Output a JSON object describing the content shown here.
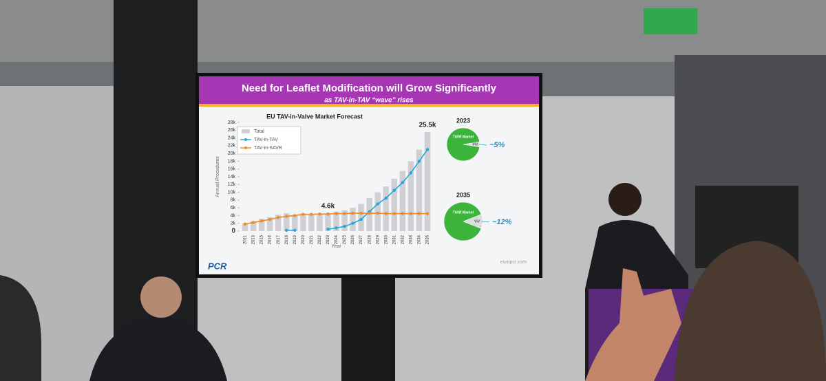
{
  "slide": {
    "title": "Need for Leaflet Modification will Grow Significantly",
    "subtitle": "as TAV-in-TAV “wave” rises",
    "logo": "PCR",
    "footer": "europcr.com"
  },
  "chart_data": [
    {
      "type": "bar-line",
      "title": "EU TAV-in-Valve Market Forecast",
      "y_label": "Annual Procedures",
      "x_label": "Year",
      "categories": [
        "2011",
        "2013",
        "2015",
        "2016",
        "2017",
        "2018",
        "2019",
        "2020",
        "2021",
        "2022",
        "2023",
        "2024",
        "2025",
        "2026",
        "2027",
        "2028",
        "2029",
        "2030",
        "2031",
        "2032",
        "2033",
        "2034",
        "2035"
      ],
      "series": [
        {
          "name": "Total",
          "kind": "bar",
          "color": "#cfcfd4",
          "values": [
            2000,
            2600,
            3200,
            3600,
            4200,
            4600,
            4200,
            4500,
            4400,
            4500,
            4600,
            5000,
            5400,
            6000,
            7000,
            8500,
            10000,
            11500,
            13500,
            15500,
            18000,
            21000,
            25500
          ]
        },
        {
          "name": "TAV-in-TAV",
          "kind": "line",
          "color": "#25a6d9",
          "values": [
            null,
            null,
            null,
            null,
            null,
            200,
            200,
            null,
            null,
            null,
            500,
            800,
            1200,
            2000,
            3000,
            5000,
            7000,
            8500,
            10500,
            12500,
            15000,
            18000,
            21000
          ]
        },
        {
          "name": "TAV-in-SAVR",
          "kind": "line",
          "color": "#f0892a",
          "values": [
            1800,
            2200,
            2600,
            3000,
            3500,
            3800,
            4000,
            4300,
            4300,
            4400,
            4400,
            4500,
            4500,
            4600,
            4600,
            4600,
            4600,
            4500,
            4500,
            4500,
            4500,
            4500,
            4500
          ]
        }
      ],
      "ylim": [
        0,
        28000
      ],
      "yticks": [
        0,
        {
          "value": 2000,
          "label": "2k"
        },
        {
          "value": 4000,
          "label": "4k"
        },
        {
          "value": 6000,
          "label": "6k"
        },
        {
          "value": 8000,
          "label": "8k"
        },
        {
          "value": 10000,
          "label": "10k"
        },
        {
          "value": 12000,
          "label": "12k"
        },
        {
          "value": 14000,
          "label": "14k"
        },
        {
          "value": 16000,
          "label": "16k"
        },
        {
          "value": 18000,
          "label": "18k"
        },
        {
          "value": 20000,
          "label": "20k"
        },
        {
          "value": 22000,
          "label": "22k"
        },
        {
          "value": 24000,
          "label": "24k"
        },
        {
          "value": 26000,
          "label": "26k"
        },
        {
          "value": 28000,
          "label": "28k"
        }
      ],
      "annotations": [
        {
          "text": "25.5k",
          "value": 25500,
          "category": "2035"
        },
        {
          "text": "4.6k",
          "value": 4600,
          "category": "2023"
        }
      ],
      "legend": "upper left"
    },
    {
      "type": "pie",
      "title": "2023",
      "categories": [
        "TAVR Market",
        "ViV"
      ],
      "values": [
        95,
        5
      ],
      "value_labels": [
        null,
        "~5%"
      ],
      "colors": [
        "#3cb43c",
        "#dcdcdc"
      ]
    },
    {
      "type": "pie",
      "title": "2035",
      "categories": [
        "TAVR Market",
        "ViV"
      ],
      "values": [
        88,
        12
      ],
      "value_labels": [
        null,
        "~12%"
      ],
      "colors": [
        "#3cb43c",
        "#dcdcdc"
      ]
    }
  ]
}
